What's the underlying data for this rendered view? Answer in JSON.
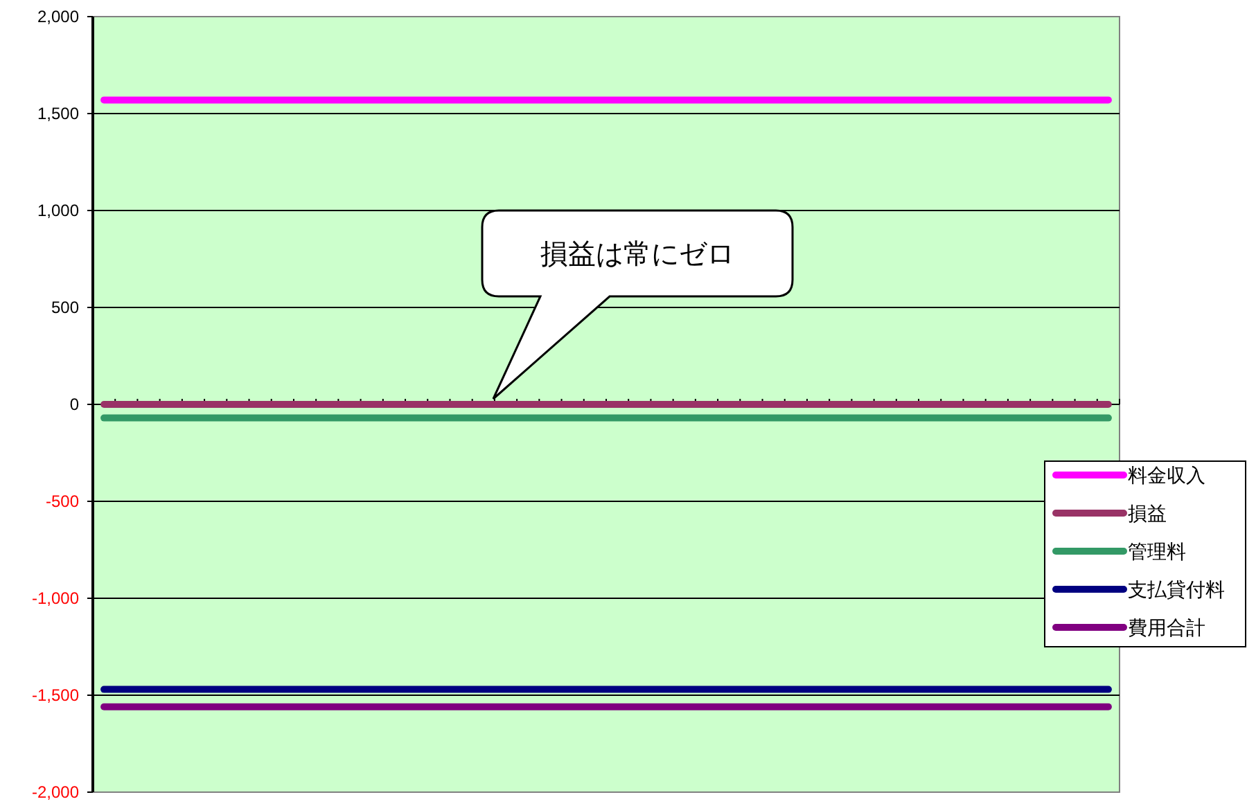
{
  "chart_data": {
    "type": "line",
    "categories": [
      null,
      null,
      null,
      null,
      null,
      null,
      null,
      null,
      null,
      null,
      null,
      null,
      null,
      null,
      null,
      null,
      null,
      null,
      null,
      null,
      null,
      null,
      null,
      null,
      null,
      null,
      null,
      null,
      null,
      null,
      null,
      null,
      null,
      null,
      null,
      null,
      null,
      null,
      null,
      null,
      null,
      null,
      null,
      null,
      null,
      null
    ],
    "series": [
      {
        "name": "料金収入",
        "color": "#ff00ff",
        "values": [
          1570,
          1570,
          1570,
          1570,
          1570,
          1570,
          1570,
          1570,
          1570,
          1570,
          1570,
          1570,
          1570,
          1570,
          1570,
          1570,
          1570,
          1570,
          1570,
          1570,
          1570,
          1570,
          1570,
          1570,
          1570,
          1570,
          1570,
          1570,
          1570,
          1570,
          1570,
          1570,
          1570,
          1570,
          1570,
          1570,
          1570,
          1570,
          1570,
          1570,
          1570,
          1570,
          1570,
          1570,
          1570,
          1570
        ]
      },
      {
        "name": "損益",
        "color": "#993366",
        "values": [
          0,
          0,
          0,
          0,
          0,
          0,
          0,
          0,
          0,
          0,
          0,
          0,
          0,
          0,
          0,
          0,
          0,
          0,
          0,
          0,
          0,
          0,
          0,
          0,
          0,
          0,
          0,
          0,
          0,
          0,
          0,
          0,
          0,
          0,
          0,
          0,
          0,
          0,
          0,
          0,
          0,
          0,
          0,
          0,
          0,
          0
        ]
      },
      {
        "name": "管理料",
        "color": "#339966",
        "values": [
          -70,
          -70,
          -70,
          -70,
          -70,
          -70,
          -70,
          -70,
          -70,
          -70,
          -70,
          -70,
          -70,
          -70,
          -70,
          -70,
          -70,
          -70,
          -70,
          -70,
          -70,
          -70,
          -70,
          -70,
          -70,
          -70,
          -70,
          -70,
          -70,
          -70,
          -70,
          -70,
          -70,
          -70,
          -70,
          -70,
          -70,
          -70,
          -70,
          -70,
          -70,
          -70,
          -70,
          -70,
          -70,
          -70
        ]
      },
      {
        "name": "支払貸付料",
        "color": "#000080",
        "values": [
          -1470,
          -1470,
          -1470,
          -1470,
          -1470,
          -1470,
          -1470,
          -1470,
          -1470,
          -1470,
          -1470,
          -1470,
          -1470,
          -1470,
          -1470,
          -1470,
          -1470,
          -1470,
          -1470,
          -1470,
          -1470,
          -1470,
          -1470,
          -1470,
          -1470,
          -1470,
          -1470,
          -1470,
          -1470,
          -1470,
          -1470,
          -1470,
          -1470,
          -1470,
          -1470,
          -1470,
          -1470,
          -1470,
          -1470,
          -1470,
          -1470,
          -1470,
          -1470,
          -1470,
          -1470,
          -1470
        ]
      },
      {
        "name": "費用合計",
        "color": "#800080",
        "values": [
          -1560,
          -1560,
          -1560,
          -1560,
          -1560,
          -1560,
          -1560,
          -1560,
          -1560,
          -1560,
          -1560,
          -1560,
          -1560,
          -1560,
          -1560,
          -1560,
          -1560,
          -1560,
          -1560,
          -1560,
          -1560,
          -1560,
          -1560,
          -1560,
          -1560,
          -1560,
          -1560,
          -1560,
          -1560,
          -1560,
          -1560,
          -1560,
          -1560,
          -1560,
          -1560,
          -1560,
          -1560,
          -1560,
          -1560,
          -1560,
          -1560,
          -1560,
          -1560,
          -1560,
          -1560,
          -1560
        ]
      }
    ],
    "ylim": [
      -2000,
      2000
    ],
    "yticks": [
      {
        "value": -2000,
        "label": "-2,000"
      },
      {
        "value": -1500,
        "label": "-1,500"
      },
      {
        "value": -1000,
        "label": "-1,000"
      },
      {
        "value": -500,
        "label": "-500"
      },
      0,
      {
        "value": 500,
        "label": "500"
      },
      {
        "value": 1000,
        "label": "1,000"
      },
      {
        "value": 1500,
        "label": "1,500"
      },
      {
        "value": 2000,
        "label": "2,000"
      }
    ],
    "grid": "y",
    "legend": "right",
    "marker": "none",
    "line_style": "solid",
    "annotations": [
      "損益は常にゼロ"
    ]
  }
}
